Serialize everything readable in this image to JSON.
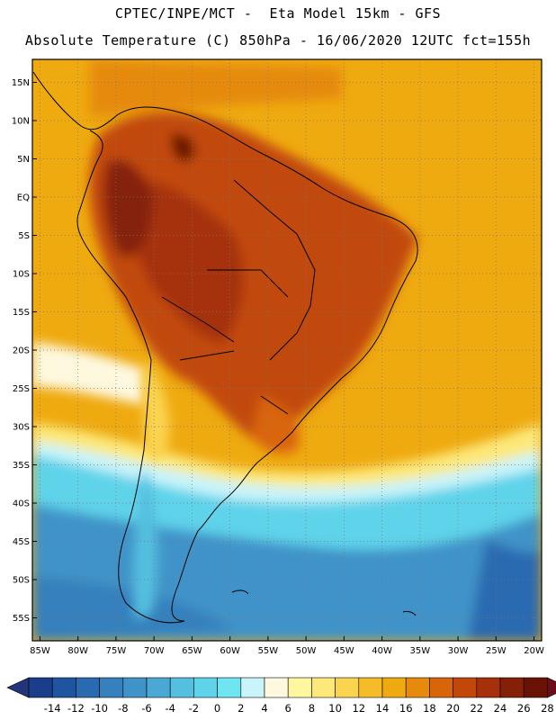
{
  "header": {
    "line1": "CPTEC/INPE/MCT -  Eta Model 15km - GFS",
    "line2": "Absolute Temperature (C) 850hPa - 16/06/2020 12UTC fct=155h"
  },
  "map": {
    "lat_labels": [
      "15N",
      "10N",
      "5N",
      "EQ",
      "5S",
      "10S",
      "15S",
      "20S",
      "25S",
      "30S",
      "35S",
      "40S",
      "45S",
      "50S",
      "55S"
    ],
    "lon_labels": [
      "85W",
      "80W",
      "75W",
      "70W",
      "65W",
      "60W",
      "55W",
      "50W",
      "45W",
      "40W",
      "35W",
      "30W",
      "25W",
      "20W"
    ],
    "extent": {
      "lon": [
        -86,
        -19
      ],
      "lat": [
        -58,
        18
      ]
    }
  },
  "colorbar": {
    "labels": [
      "-14",
      "-12",
      "-10",
      "-8",
      "-6",
      "-4",
      "-2",
      "0",
      "2",
      "4",
      "6",
      "8",
      "10",
      "12",
      "14",
      "16",
      "18",
      "20",
      "22",
      "24",
      "26",
      "28"
    ],
    "colors": [
      "#1a3d8c",
      "#1f55a0",
      "#2a6ab0",
      "#3580bd",
      "#3f93c8",
      "#4aa8d4",
      "#55bfe0",
      "#5fd3ea",
      "#6ee6f2",
      "#c9f4fa",
      "#fef8df",
      "#fff7a0",
      "#fde87a",
      "#fbd44f",
      "#f4bc28",
      "#efaa10",
      "#e58a0c",
      "#d9650b",
      "#c2480a",
      "#a5300a",
      "#852008",
      "#6a1206"
    ],
    "min_color": "#22347a",
    "max_color": "#6b0d1a"
  }
}
